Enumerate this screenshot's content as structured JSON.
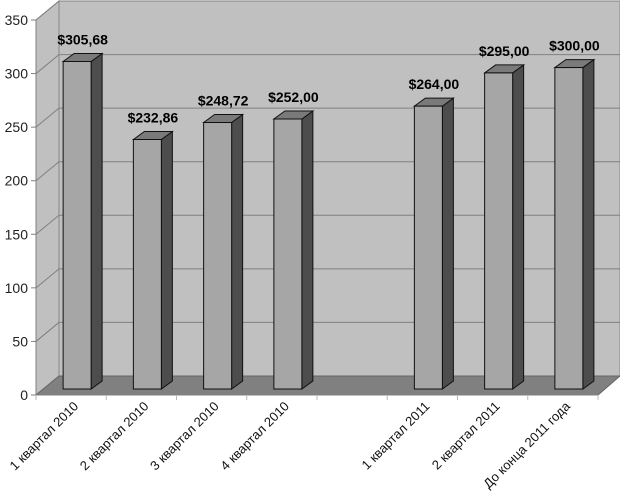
{
  "chart_data": {
    "type": "bar",
    "title": "",
    "xlabel": "",
    "ylabel": "",
    "ylim": [
      0,
      350
    ],
    "yticks": [
      0,
      50,
      100,
      150,
      200,
      250,
      300,
      350
    ],
    "grid": true,
    "categories": [
      "1 квартал 2010",
      "2 квартал 2010",
      "3 квартал 2010",
      "4 квартал 2010",
      "",
      "1 квартал 2011",
      "2 квартал 2011",
      "До конца 2011 года"
    ],
    "values": [
      305.68,
      232.86,
      248.72,
      252.0,
      null,
      264.0,
      295.0,
      300.0
    ],
    "data_labels": [
      "$305,68",
      "$232,86",
      "$248,72",
      "$252,00",
      "",
      "$264,00",
      "$295,00",
      "$300,00"
    ],
    "colors": {
      "wall": "#c0c0c0",
      "floor": "#808080",
      "bar_front": "#a6a6a6",
      "bar_side": "#4d4d4d",
      "bar_top": "#7a7a7a"
    }
  }
}
